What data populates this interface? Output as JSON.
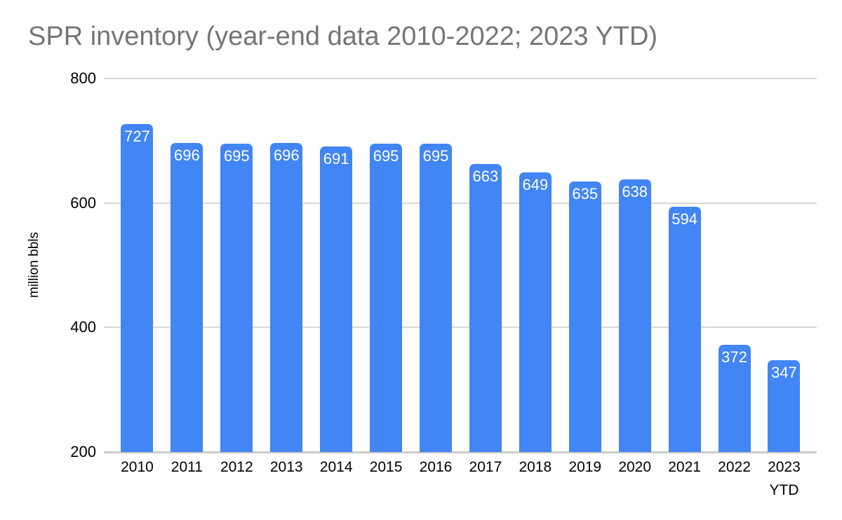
{
  "chart_data": {
    "type": "bar",
    "title": "SPR inventory (year-end data 2010-2022; 2023 YTD)",
    "xlabel": "",
    "ylabel": "million bbls",
    "categories": [
      "2010",
      "2011",
      "2012",
      "2013",
      "2014",
      "2015",
      "2016",
      "2017",
      "2018",
      "2019",
      "2020",
      "2021",
      "2022",
      "2023 YTD"
    ],
    "values": [
      727,
      696,
      695,
      696,
      691,
      695,
      695,
      663,
      649,
      635,
      638,
      594,
      372,
      347
    ],
    "ylim": [
      200,
      800
    ],
    "yticks": [
      200,
      400,
      600,
      800
    ],
    "grid": true,
    "legend": "none",
    "bar_color": "#4285f4",
    "value_label_color": "#ffffff",
    "title_color": "#757575",
    "gridline_color": "#d9d9d9",
    "axis_line_color": "#cccccc",
    "tick_label_color": "#000000"
  }
}
